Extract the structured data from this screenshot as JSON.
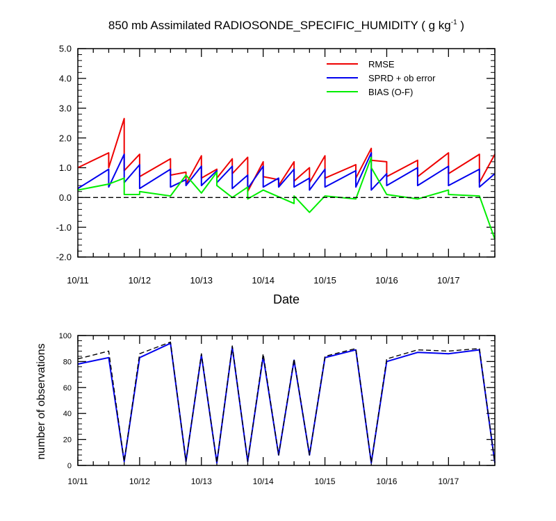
{
  "chart_data": [
    {
      "type": "line",
      "title": "850 mb Assimilated RADIOSONDE_SPECIFIC_HUMIDITY",
      "units_prefix": "g kg",
      "units_exponent": "-1",
      "xlabel": "Date",
      "ylabel": "",
      "xlim": [
        0,
        6.75
      ],
      "ylim": [
        -2.0,
        5.0
      ],
      "x_ticks": [
        {
          "x": 0,
          "label": "10/11"
        },
        {
          "x": 1,
          "label": "10/12"
        },
        {
          "x": 2,
          "label": "10/13"
        },
        {
          "x": 3,
          "label": "10/14"
        },
        {
          "x": 4,
          "label": "10/15"
        },
        {
          "x": 5,
          "label": "10/16"
        },
        {
          "x": 6,
          "label": "10/17"
        }
      ],
      "y_ticks": [
        {
          "y": -2.0,
          "label": "-2.0"
        },
        {
          "y": -1.0,
          "label": "-1.0"
        },
        {
          "y": 0.0,
          "label": "0.0"
        },
        {
          "y": 1.0,
          "label": "1.0"
        },
        {
          "y": 2.0,
          "label": "2.0"
        },
        {
          "y": 3.0,
          "label": "3.0"
        },
        {
          "y": 4.0,
          "label": "4.0"
        },
        {
          "y": 5.0,
          "label": "5.0"
        }
      ],
      "zero_line": true,
      "legend_position": "top-right",
      "series": [
        {
          "name": "RMSE",
          "color": "#ee0000",
          "points": [
            [
              0,
              1.0
            ],
            [
              0.5,
              1.5
            ],
            [
              0.5,
              1.0
            ],
            [
              0.75,
              2.65
            ],
            [
              0.75,
              0.9
            ],
            [
              1.0,
              1.45
            ],
            [
              1.0,
              0.7
            ],
            [
              1.5,
              1.3
            ],
            [
              1.5,
              0.75
            ],
            [
              1.75,
              0.85
            ],
            [
              1.75,
              0.45
            ],
            [
              2.0,
              1.4
            ],
            [
              2.0,
              0.65
            ],
            [
              2.25,
              0.95
            ],
            [
              2.25,
              0.65
            ],
            [
              2.5,
              1.3
            ],
            [
              2.5,
              0.8
            ],
            [
              2.75,
              1.35
            ],
            [
              2.75,
              0.2
            ],
            [
              3.0,
              1.2
            ],
            [
              3.0,
              0.7
            ],
            [
              3.25,
              0.6
            ],
            [
              3.25,
              0.4
            ],
            [
              3.5,
              1.2
            ],
            [
              3.5,
              0.55
            ],
            [
              3.75,
              1.0
            ],
            [
              3.75,
              0.5
            ],
            [
              4.0,
              1.4
            ],
            [
              4.0,
              0.65
            ],
            [
              4.5,
              1.1
            ],
            [
              4.5,
              0.65
            ],
            [
              4.75,
              1.65
            ],
            [
              4.75,
              1.25
            ],
            [
              5.0,
              1.2
            ],
            [
              5.0,
              0.7
            ],
            [
              5.5,
              1.25
            ],
            [
              5.5,
              0.7
            ],
            [
              6.0,
              1.5
            ],
            [
              6.0,
              0.8
            ],
            [
              6.5,
              1.45
            ],
            [
              6.5,
              0.5
            ],
            [
              6.75,
              1.45
            ]
          ]
        },
        {
          "name": "SPRD + ob error",
          "color": "#0000ee",
          "points": [
            [
              0,
              0.3
            ],
            [
              0.5,
              0.95
            ],
            [
              0.5,
              0.35
            ],
            [
              0.75,
              1.45
            ],
            [
              0.75,
              0.5
            ],
            [
              1.0,
              1.1
            ],
            [
              1.0,
              0.3
            ],
            [
              1.5,
              0.95
            ],
            [
              1.5,
              0.35
            ],
            [
              1.75,
              0.6
            ],
            [
              1.75,
              0.4
            ],
            [
              2.0,
              1.05
            ],
            [
              2.0,
              0.4
            ],
            [
              2.25,
              0.9
            ],
            [
              2.25,
              0.5
            ],
            [
              2.5,
              1.05
            ],
            [
              2.5,
              0.3
            ],
            [
              2.75,
              0.75
            ],
            [
              2.75,
              0.3
            ],
            [
              3.0,
              1.05
            ],
            [
              3.0,
              0.35
            ],
            [
              3.25,
              0.65
            ],
            [
              3.25,
              0.35
            ],
            [
              3.5,
              0.95
            ],
            [
              3.5,
              0.35
            ],
            [
              3.75,
              0.65
            ],
            [
              3.75,
              0.25
            ],
            [
              4.0,
              0.95
            ],
            [
              4.0,
              0.35
            ],
            [
              4.5,
              0.9
            ],
            [
              4.5,
              0.35
            ],
            [
              4.75,
              1.5
            ],
            [
              4.75,
              0.25
            ],
            [
              5.0,
              0.8
            ],
            [
              5.0,
              0.4
            ],
            [
              5.5,
              1.0
            ],
            [
              5.5,
              0.4
            ],
            [
              6.0,
              1.05
            ],
            [
              6.0,
              0.4
            ],
            [
              6.5,
              0.95
            ],
            [
              6.5,
              0.35
            ],
            [
              6.75,
              0.8
            ]
          ]
        },
        {
          "name": "BIAS (O-F)",
          "color": "#00ee00",
          "points": [
            [
              0,
              0.25
            ],
            [
              0.5,
              0.45
            ],
            [
              0.75,
              0.65
            ],
            [
              0.75,
              0.1
            ],
            [
              1.0,
              0.1
            ],
            [
              1.0,
              0.2
            ],
            [
              1.5,
              0.05
            ],
            [
              1.75,
              0.75
            ],
            [
              2.0,
              0.15
            ],
            [
              2.25,
              0.85
            ],
            [
              2.25,
              0.4
            ],
            [
              2.5,
              0.0
            ],
            [
              2.75,
              0.35
            ],
            [
              2.75,
              -0.05
            ],
            [
              3.0,
              0.25
            ],
            [
              3.5,
              -0.2
            ],
            [
              3.5,
              0.05
            ],
            [
              3.75,
              -0.5
            ],
            [
              4.0,
              0.05
            ],
            [
              4.5,
              -0.05
            ],
            [
              4.75,
              1.35
            ],
            [
              4.75,
              1.0
            ],
            [
              5.0,
              0.1
            ],
            [
              5.5,
              -0.05
            ],
            [
              6.0,
              0.25
            ],
            [
              6.0,
              0.1
            ],
            [
              6.5,
              0.05
            ],
            [
              6.75,
              -1.4
            ]
          ]
        },
        {
          "name": "zero",
          "color": "#000000",
          "dashed": true,
          "in_legend": false,
          "points": [
            [
              0,
              0
            ],
            [
              6.75,
              0
            ]
          ]
        }
      ]
    },
    {
      "type": "line",
      "title": "",
      "xlabel": "",
      "ylabel": "number of observations",
      "xlim": [
        0,
        6.75
      ],
      "ylim": [
        0,
        100
      ],
      "x_ticks": [
        {
          "x": 0,
          "label": "10/11"
        },
        {
          "x": 1,
          "label": "10/12"
        },
        {
          "x": 2,
          "label": "10/13"
        },
        {
          "x": 3,
          "label": "10/14"
        },
        {
          "x": 4,
          "label": "10/15"
        },
        {
          "x": 5,
          "label": "10/16"
        },
        {
          "x": 6,
          "label": "10/17"
        }
      ],
      "y_ticks": [
        {
          "y": 0,
          "label": "0"
        },
        {
          "y": 20,
          "label": "20"
        },
        {
          "y": 40,
          "label": "40"
        },
        {
          "y": 60,
          "label": "60"
        },
        {
          "y": 80,
          "label": "80"
        },
        {
          "y": 100,
          "label": "100"
        }
      ],
      "series": [
        {
          "name": "observations assimilated",
          "color": "#0000ee",
          "points": [
            [
              0,
              78
            ],
            [
              0.5,
              83
            ],
            [
              0.75,
              3
            ],
            [
              1.0,
              83
            ],
            [
              1.5,
              94
            ],
            [
              1.75,
              3
            ],
            [
              2.0,
              85
            ],
            [
              2.25,
              2
            ],
            [
              2.5,
              91
            ],
            [
              2.75,
              3
            ],
            [
              3.0,
              84
            ],
            [
              3.25,
              8
            ],
            [
              3.5,
              81
            ],
            [
              3.75,
              8
            ],
            [
              4.0,
              83
            ],
            [
              4.5,
              89
            ],
            [
              4.75,
              2
            ],
            [
              5.0,
              80
            ],
            [
              5.5,
              87
            ],
            [
              6.0,
              86
            ],
            [
              6.5,
              89
            ],
            [
              6.75,
              2
            ]
          ]
        },
        {
          "name": "observations possible",
          "color": "#000000",
          "dashed": true,
          "points": [
            [
              0,
              82
            ],
            [
              0.5,
              88
            ],
            [
              0.75,
              3
            ],
            [
              1.0,
              86
            ],
            [
              1.5,
              95
            ],
            [
              1.75,
              3
            ],
            [
              2.0,
              86
            ],
            [
              2.25,
              2
            ],
            [
              2.5,
              92
            ],
            [
              2.75,
              3
            ],
            [
              3.0,
              86
            ],
            [
              3.25,
              8
            ],
            [
              3.5,
              82
            ],
            [
              3.75,
              8
            ],
            [
              4.0,
              84
            ],
            [
              4.5,
              90
            ],
            [
              4.75,
              2
            ],
            [
              5.0,
              82
            ],
            [
              5.5,
              89
            ],
            [
              6.0,
              88
            ],
            [
              6.5,
              90
            ],
            [
              6.75,
              2
            ]
          ]
        }
      ]
    }
  ]
}
